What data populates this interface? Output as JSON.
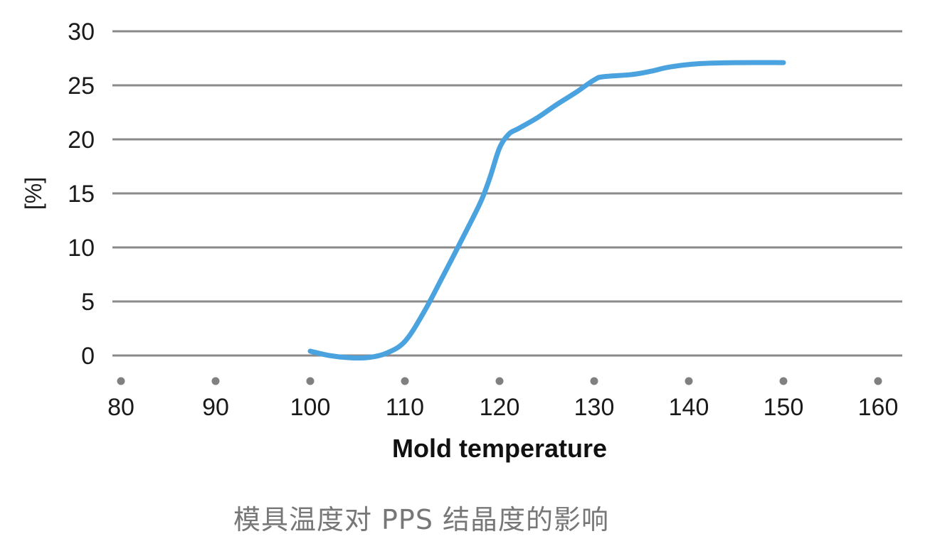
{
  "chart_data": {
    "type": "line",
    "xlabel": "Mold temperature",
    "ylabel": "[%]",
    "x_ticks": [
      "80",
      "90",
      "100",
      "110",
      "120",
      "130",
      "140",
      "150",
      "160"
    ],
    "y_ticks": [
      "0",
      "5",
      "10",
      "15",
      "20",
      "25",
      "30"
    ],
    "xlim": [
      80,
      160
    ],
    "ylim": [
      0,
      30
    ],
    "grid": "horizontal",
    "series": [
      {
        "color": "#4aa3df",
        "x": [
          100,
          102,
          104,
          106,
          108,
          110,
          112,
          114,
          116,
          118,
          119,
          120,
          121,
          122,
          124,
          126,
          128,
          130,
          131,
          134,
          136,
          138,
          141,
          145,
          150
        ],
        "y": [
          0.4,
          0.0,
          -0.2,
          -0.2,
          0.2,
          1.3,
          4.0,
          7.3,
          10.7,
          14.2,
          16.5,
          19.2,
          20.5,
          21.0,
          22.0,
          23.2,
          24.3,
          25.5,
          25.8,
          26.0,
          26.3,
          26.7,
          27.0,
          27.1,
          27.1
        ]
      }
    ],
    "caption": "模具温度对 PPS 结晶度的影响"
  }
}
